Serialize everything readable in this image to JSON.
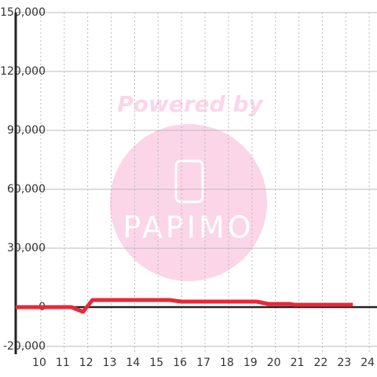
{
  "chart_data": {
    "type": "line",
    "watermark": {
      "title": "Powered by",
      "logo": "PAPIMO"
    },
    "x": [
      8.93,
      11.3,
      11.8,
      12.2,
      15.5,
      16.0,
      19.2,
      19.7,
      20.6,
      20.8,
      23.3
    ],
    "series": [
      {
        "color": "#e8283a",
        "values": [
          0,
          0,
          -2400,
          3600,
          3600,
          2800,
          2800,
          1600,
          1600,
          1200,
          1200
        ]
      }
    ],
    "xlim": [
      8.93,
      24.33
    ],
    "xticks": [
      10,
      11,
      12,
      13,
      14,
      15,
      16,
      17,
      18,
      19,
      20,
      21,
      22,
      23,
      24
    ],
    "ylim": [
      -24000,
      150000
    ],
    "yticks": [
      {
        "value": -20000,
        "label": "-20,000"
      },
      0,
      {
        "value": 30000,
        "label": "30,000"
      },
      {
        "value": 60000,
        "label": "60,000"
      },
      {
        "value": 90000,
        "label": "90,000"
      },
      {
        "value": 120000,
        "label": "120,000"
      },
      {
        "value": 150000,
        "label": "150,000"
      }
    ],
    "grid": true
  }
}
